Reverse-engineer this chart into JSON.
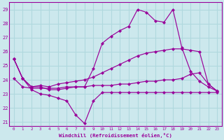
{
  "background_color": "#cce8ed",
  "grid_color": "#b0d8de",
  "line_color": "#990099",
  "xlabel": "Windchill (Refroidissement éolien,°C)",
  "xlim": [
    -0.5,
    23.5
  ],
  "ylim": [
    20.7,
    29.5
  ],
  "yticks": [
    21,
    22,
    23,
    24,
    25,
    26,
    27,
    28,
    29
  ],
  "xticks": [
    0,
    1,
    2,
    3,
    4,
    5,
    6,
    7,
    8,
    9,
    10,
    11,
    12,
    13,
    14,
    15,
    16,
    17,
    18,
    19,
    20,
    21,
    22,
    23
  ],
  "line_upper": {
    "x": [
      0,
      1,
      2,
      3,
      4,
      5,
      6,
      7,
      8,
      9,
      10,
      11,
      12,
      13,
      14,
      15,
      16,
      17,
      18,
      19,
      20,
      21,
      22,
      23
    ],
    "y": [
      25.5,
      24.1,
      23.5,
      23.5,
      23.3,
      23.3,
      23.4,
      23.5,
      23.5,
      24.8,
      26.6,
      27.1,
      27.5,
      27.8,
      29.0,
      28.8,
      28.2,
      28.1,
      29.0,
      26.3,
      24.6,
      23.9,
      23.5,
      23.2
    ]
  },
  "line_mid_upper": {
    "x": [
      0,
      1,
      2,
      3,
      4,
      5,
      6,
      7,
      8,
      9,
      10,
      11,
      12,
      13,
      14,
      15,
      16,
      17,
      18,
      19,
      20,
      21,
      22,
      23
    ],
    "y": [
      25.5,
      24.1,
      23.5,
      23.6,
      23.5,
      23.7,
      23.8,
      23.9,
      24.0,
      24.2,
      24.5,
      24.8,
      25.1,
      25.4,
      25.7,
      25.9,
      26.0,
      26.1,
      26.2,
      26.2,
      26.1,
      26.0,
      23.7,
      23.2
    ]
  },
  "line_mid_lower": {
    "x": [
      0,
      1,
      2,
      3,
      4,
      5,
      6,
      7,
      8,
      9,
      10,
      11,
      12,
      13,
      14,
      15,
      16,
      17,
      18,
      19,
      20,
      21,
      22,
      23
    ],
    "y": [
      24.1,
      23.5,
      23.4,
      23.4,
      23.4,
      23.4,
      23.5,
      23.5,
      23.5,
      23.6,
      23.6,
      23.6,
      23.7,
      23.7,
      23.8,
      23.9,
      23.9,
      24.0,
      24.0,
      24.1,
      24.4,
      24.5,
      23.7,
      23.2
    ]
  },
  "line_lower": {
    "x": [
      0,
      1,
      2,
      3,
      4,
      5,
      6,
      7,
      8,
      9,
      10,
      11,
      12,
      13,
      14,
      15,
      16,
      17,
      18,
      19,
      20,
      21,
      22,
      23
    ],
    "y": [
      25.5,
      24.1,
      23.3,
      23.0,
      22.9,
      22.7,
      22.5,
      21.5,
      20.9,
      22.5,
      23.1,
      23.1,
      23.1,
      23.1,
      23.1,
      23.1,
      23.1,
      23.1,
      23.1,
      23.1,
      23.1,
      23.1,
      23.1,
      23.1
    ]
  }
}
